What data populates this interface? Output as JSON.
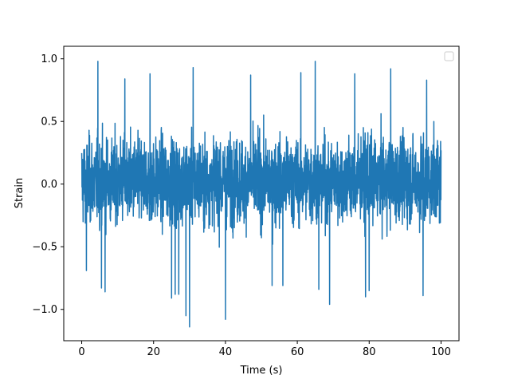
{
  "chart_data": {
    "type": "line",
    "title": "",
    "xlabel": "Time (s)",
    "ylabel": "Strain",
    "xlim": [
      -5,
      105
    ],
    "ylim": [
      -1.25,
      1.1
    ],
    "xticks": [
      0,
      20,
      40,
      60,
      80,
      100
    ],
    "yticks": [
      -1.0,
      -0.5,
      0.0,
      0.5,
      1.0
    ],
    "xtick_labels": [
      "0",
      "20",
      "40",
      "60",
      "80",
      "100"
    ],
    "ytick_labels": [
      "−1.0",
      "−0.5",
      "0.0",
      "0.5",
      "1.0"
    ],
    "grid": false,
    "legend": {
      "placement": "top-right",
      "entries": []
    },
    "series": [
      {
        "color": "#1f77b4",
        "x_range": [
          0,
          100
        ],
        "typical_range": [
          -0.5,
          0.55
        ],
        "max": 1.0,
        "min": -1.14,
        "peaks": [
          [
            4.5,
            0.98
          ],
          [
            5.5,
            0.83
          ],
          [
            12,
            0.84
          ],
          [
            19,
            0.88
          ],
          [
            25,
            0.9
          ],
          [
            30,
            1.0
          ],
          [
            31,
            0.93
          ],
          [
            47,
            0.87
          ],
          [
            61,
            0.89
          ],
          [
            65,
            0.98
          ],
          [
            76,
            0.88
          ],
          [
            86,
            0.92
          ],
          [
            95,
            0.84
          ],
          [
            96,
            0.83
          ]
        ],
        "troughs": [
          [
            1.3,
            -0.69
          ],
          [
            5.5,
            -0.83
          ],
          [
            6.5,
            -0.86
          ],
          [
            25,
            -0.91
          ],
          [
            26,
            -0.88
          ],
          [
            27,
            -0.88
          ],
          [
            29,
            -1.05
          ],
          [
            30,
            -1.14
          ],
          [
            40,
            -1.08
          ],
          [
            53,
            -0.81
          ],
          [
            56,
            -0.81
          ],
          [
            66,
            -0.84
          ],
          [
            69,
            -0.96
          ],
          [
            79,
            -0.9
          ],
          [
            80,
            -0.85
          ],
          [
            95,
            -0.89
          ]
        ]
      }
    ]
  }
}
